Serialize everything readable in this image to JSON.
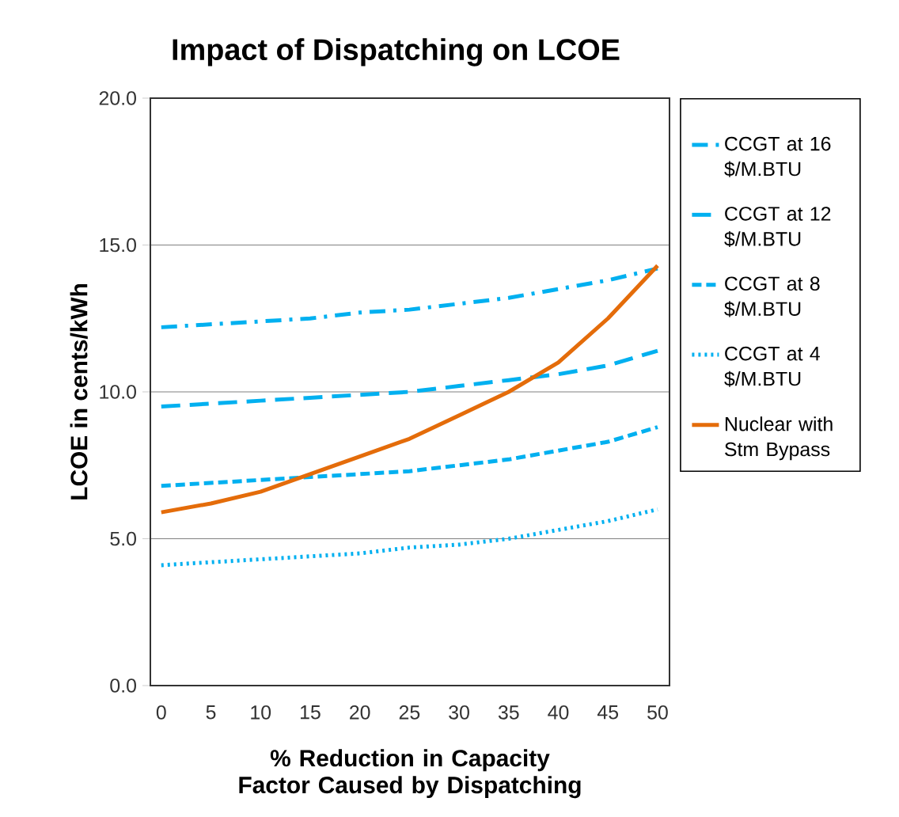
{
  "chart_data": {
    "type": "line",
    "title": "Impact of Dispatching on LCOE",
    "xlabel": "% Reduction in Capacity Factor Caused by Dispatching",
    "ylabel": "LCOE in cents/kWh",
    "x": [
      0,
      5,
      10,
      15,
      20,
      25,
      30,
      35,
      40,
      45,
      50
    ],
    "xlim": [
      -1.1,
      51.2
    ],
    "xticks": [
      0,
      5,
      10,
      15,
      20,
      25,
      30,
      35,
      40,
      45,
      50
    ],
    "ylim": [
      0,
      20
    ],
    "yticks": [
      {
        "value": 0,
        "label": "0.0"
      },
      {
        "value": 5,
        "label": "5.0"
      },
      {
        "value": 10,
        "label": "10.0"
      },
      {
        "value": 15,
        "label": "15.0"
      },
      {
        "value": 20,
        "label": "20.0"
      }
    ],
    "grid": "y",
    "legend": "right",
    "series": [
      {
        "name": "CCGT at 16 $/M.BTU",
        "color": "#00b0f0",
        "line_style": "dashdot",
        "values": [
          12.2,
          12.3,
          12.4,
          12.5,
          12.7,
          12.8,
          13.0,
          13.2,
          13.5,
          13.8,
          14.2
        ]
      },
      {
        "name": "CCGT at 12 $/M.BTU",
        "color": "#00b0f0",
        "line_style": "longdash",
        "values": [
          9.5,
          9.6,
          9.7,
          9.8,
          9.9,
          10.0,
          10.2,
          10.4,
          10.6,
          10.9,
          11.4
        ]
      },
      {
        "name": "CCGT at 8 $/M.BTU",
        "color": "#00b0f0",
        "line_style": "dashed",
        "values": [
          6.8,
          6.9,
          7.0,
          7.1,
          7.2,
          7.3,
          7.5,
          7.7,
          8.0,
          8.3,
          8.8
        ]
      },
      {
        "name": "CCGT at 4 $/M.BTU",
        "color": "#00b0f0",
        "line_style": "dotted",
        "values": [
          4.1,
          4.2,
          4.3,
          4.4,
          4.5,
          4.7,
          4.8,
          5.0,
          5.3,
          5.6,
          6.0
        ]
      },
      {
        "name": "Nuclear with Stm Bypass",
        "color": "#e46c0a",
        "line_style": "solid",
        "values": [
          5.9,
          6.2,
          6.6,
          7.2,
          7.8,
          8.4,
          9.2,
          10.0,
          11.0,
          12.5,
          14.3
        ]
      }
    ]
  }
}
